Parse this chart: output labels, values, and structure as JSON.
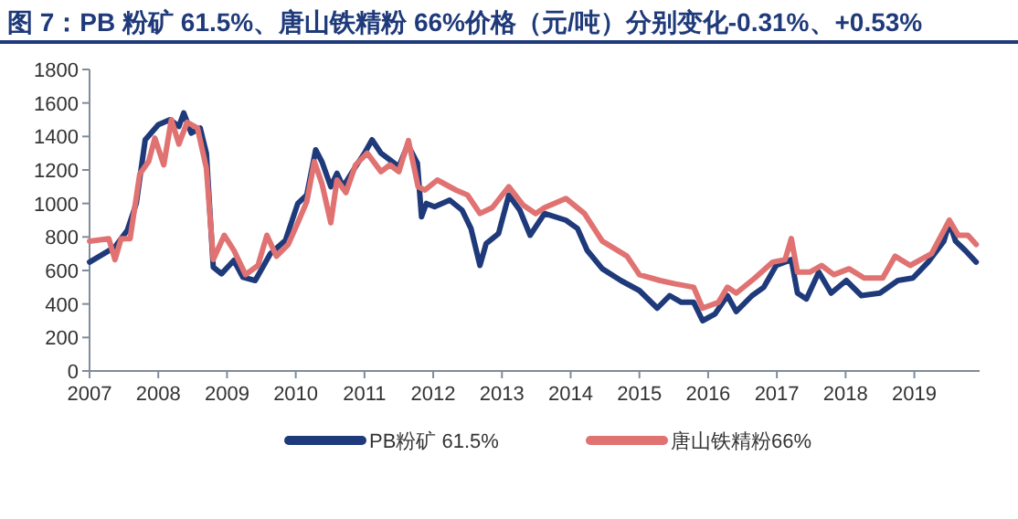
{
  "chart_data": {
    "type": "line",
    "title": "图 7：PB 粉矿  61.5%、唐山铁精粉 66%价格（元/吨）分别变化-0.31%、+0.53%",
    "xlim": [
      2007,
      2019.95
    ],
    "xticks": [
      2007,
      2008,
      2009,
      2010,
      2011,
      2012,
      2013,
      2014,
      2015,
      2016,
      2017,
      2018,
      2019
    ],
    "ylim": [
      0,
      1800
    ],
    "yticks": [
      0,
      200,
      400,
      600,
      800,
      1000,
      1200,
      1400,
      1600,
      1800
    ],
    "legend": "bottom",
    "line_style": "solid",
    "series": [
      {
        "name": "PB粉矿 61.5%",
        "color": "#1f3a7a",
        "x": [
          2007.0,
          2007.37,
          2007.55,
          2007.68,
          2007.81,
          2008.0,
          2008.17,
          2008.3,
          2008.37,
          2008.48,
          2008.61,
          2008.7,
          2008.8,
          2008.92,
          2009.1,
          2009.23,
          2009.41,
          2009.63,
          2009.85,
          2010.03,
          2010.16,
          2010.29,
          2010.38,
          2010.51,
          2010.6,
          2010.69,
          2010.87,
          2011.0,
          2011.11,
          2011.24,
          2011.37,
          2011.5,
          2011.63,
          2011.77,
          2011.83,
          2011.9,
          2012.02,
          2012.24,
          2012.42,
          2012.55,
          2012.68,
          2012.77,
          2012.95,
          2013.1,
          2013.26,
          2013.41,
          2013.62,
          2013.93,
          2014.1,
          2014.24,
          2014.46,
          2014.73,
          2015.0,
          2015.26,
          2015.44,
          2015.61,
          2015.79,
          2015.92,
          2016.1,
          2016.28,
          2016.41,
          2016.64,
          2016.81,
          2016.99,
          2017.21,
          2017.3,
          2017.43,
          2017.61,
          2017.79,
          2018.01,
          2018.23,
          2018.5,
          2018.76,
          2018.98,
          2019.2,
          2019.43,
          2019.51,
          2019.6,
          2019.74,
          2019.9
        ],
        "values": [
          650,
          740,
          840,
          1000,
          1380,
          1470,
          1500,
          1460,
          1540,
          1420,
          1450,
          1300,
          620,
          580,
          660,
          560,
          540,
          700,
          780,
          1000,
          1050,
          1320,
          1250,
          1100,
          1180,
          1100,
          1220,
          1300,
          1380,
          1300,
          1260,
          1220,
          1350,
          1240,
          920,
          1000,
          980,
          1020,
          960,
          850,
          630,
          760,
          820,
          1050,
          960,
          810,
          940,
          900,
          850,
          720,
          610,
          540,
          480,
          375,
          450,
          410,
          410,
          300,
          340,
          450,
          355,
          450,
          500,
          630,
          665,
          465,
          430,
          590,
          465,
          540,
          450,
          465,
          540,
          555,
          650,
          775,
          885,
          775,
          720,
          650
        ]
      },
      {
        "name": "唐山铁精粉66%",
        "color": "#e07272",
        "x": [
          2007.0,
          2007.28,
          2007.37,
          2007.46,
          2007.59,
          2007.73,
          2007.86,
          2007.95,
          2008.08,
          2008.19,
          2008.3,
          2008.42,
          2008.57,
          2008.7,
          2008.8,
          2008.96,
          2009.1,
          2009.27,
          2009.45,
          2009.58,
          2009.72,
          2009.89,
          2010.03,
          2010.16,
          2010.27,
          2010.38,
          2010.51,
          2010.6,
          2010.73,
          2010.87,
          2011.04,
          2011.24,
          2011.37,
          2011.5,
          2011.64,
          2011.78,
          2011.88,
          2012.06,
          2012.33,
          2012.5,
          2012.68,
          2012.86,
          2013.1,
          2013.31,
          2013.49,
          2013.62,
          2013.93,
          2014.2,
          2014.46,
          2014.82,
          2015.0,
          2015.3,
          2015.52,
          2015.79,
          2015.92,
          2016.15,
          2016.28,
          2016.41,
          2016.68,
          2016.94,
          2017.12,
          2017.21,
          2017.3,
          2017.48,
          2017.65,
          2017.83,
          2018.05,
          2018.27,
          2018.54,
          2018.72,
          2018.94,
          2019.25,
          2019.51,
          2019.64,
          2019.78,
          2019.9
        ],
        "values": [
          775,
          790,
          665,
          790,
          790,
          1175,
          1250,
          1390,
          1230,
          1500,
          1355,
          1485,
          1450,
          1210,
          665,
          810,
          720,
          575,
          630,
          810,
          685,
          755,
          885,
          1010,
          1250,
          1120,
          885,
          1140,
          1065,
          1230,
          1300,
          1190,
          1230,
          1190,
          1375,
          1100,
          1080,
          1140,
          1080,
          1050,
          940,
          975,
          1100,
          990,
          940,
          975,
          1030,
          940,
          775,
          685,
          575,
          540,
          520,
          500,
          375,
          410,
          500,
          465,
          555,
          650,
          665,
          790,
          590,
          590,
          630,
          575,
          610,
          555,
          555,
          685,
          630,
          700,
          900,
          810,
          810,
          755
        ]
      }
    ]
  }
}
